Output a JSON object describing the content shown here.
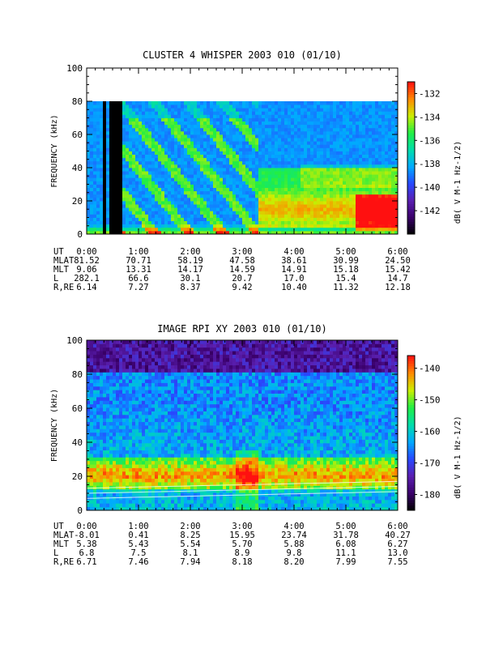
{
  "chart_data": [
    {
      "type": "heatmap",
      "title": "CLUSTER 4 WHISPER 2003 010 (01/10)",
      "ylabel": "FREQUENCY (kHz)",
      "ylim": [
        0,
        100
      ],
      "yticks": [
        "0",
        "20",
        "40",
        "60",
        "80",
        "100"
      ],
      "x_categories": [
        "0:00",
        "1:00",
        "2:00",
        "3:00",
        "4:00",
        "5:00",
        "6:00"
      ],
      "data_upper_khz": 80,
      "colorbar": {
        "label": "dB( V M-1 Hz-1/2)",
        "ticks": [
          "-132",
          "-134",
          "-136",
          "-138",
          "-140",
          "-142"
        ],
        "range": [
          -144,
          -131
        ],
        "colors": [
          "#000000",
          "#3a006a",
          "#5a1fb0",
          "#2848ff",
          "#00aaff",
          "#00ddaa",
          "#22ee44",
          "#ccee00",
          "#ff8800",
          "#ff1010"
        ]
      },
      "ephemeris": [
        {
          "label": "UT",
          "values": [
            "0:00",
            "1:00",
            "2:00",
            "3:00",
            "4:00",
            "5:00",
            "6:00"
          ]
        },
        {
          "label": "MLAT",
          "values": [
            "81.52",
            "70.71",
            "58.19",
            "47.58",
            "38.61",
            "30.99",
            "24.50"
          ]
        },
        {
          "label": "MLT",
          "values": [
            "9.06",
            "13.31",
            "14.17",
            "14.59",
            "14.91",
            "15.18",
            "15.42"
          ]
        },
        {
          "label": "L",
          "values": [
            "282.1",
            "66.6",
            "30.1",
            "20.7",
            "17.0",
            "15.4",
            "14.7"
          ]
        },
        {
          "label": "R,RE",
          "values": [
            "6.14",
            "7.27",
            "8.37",
            "9.42",
            "10.40",
            "11.32",
            "12.18"
          ]
        }
      ]
    },
    {
      "type": "heatmap",
      "title": "IMAGE RPI XY 2003 010 (01/10)",
      "ylabel": "FREQUENCY (kHz)",
      "ylim": [
        0,
        100
      ],
      "yticks": [
        "0",
        "20",
        "40",
        "60",
        "80",
        "100"
      ],
      "x_categories": [
        "0:00",
        "1:00",
        "2:00",
        "3:00",
        "4:00",
        "5:00",
        "6:00"
      ],
      "data_upper_khz": 100,
      "colorbar": {
        "label": "dB( V M-1 Hz-1/2)",
        "ticks": [
          "-140",
          "-150",
          "-160",
          "-170",
          "-180"
        ],
        "range": [
          -185,
          -136
        ],
        "colors": [
          "#000000",
          "#3a006a",
          "#5a1fb0",
          "#2848ff",
          "#00aaff",
          "#00ddaa",
          "#22ee44",
          "#ccee00",
          "#ff8800",
          "#ff1010"
        ]
      },
      "ephemeris": [
        {
          "label": "UT",
          "values": [
            "0:00",
            "1:00",
            "2:00",
            "3:00",
            "4:00",
            "5:00",
            "6:00"
          ]
        },
        {
          "label": "MLAT",
          "values": [
            "-8.01",
            "0.41",
            "8.25",
            "15.95",
            "23.74",
            "31.78",
            "40.27"
          ]
        },
        {
          "label": "MLT",
          "values": [
            "5.38",
            "5.43",
            "5.54",
            "5.70",
            "5.88",
            "6.08",
            "6.27"
          ]
        },
        {
          "label": "L",
          "values": [
            "6.8",
            "7.5",
            "8.1",
            "8.9",
            "9.8",
            "11.1",
            "13.0"
          ]
        },
        {
          "label": "R,RE",
          "values": [
            "6.71",
            "7.46",
            "7.94",
            "8.18",
            "8.20",
            "7.99",
            "7.55"
          ]
        }
      ]
    }
  ]
}
